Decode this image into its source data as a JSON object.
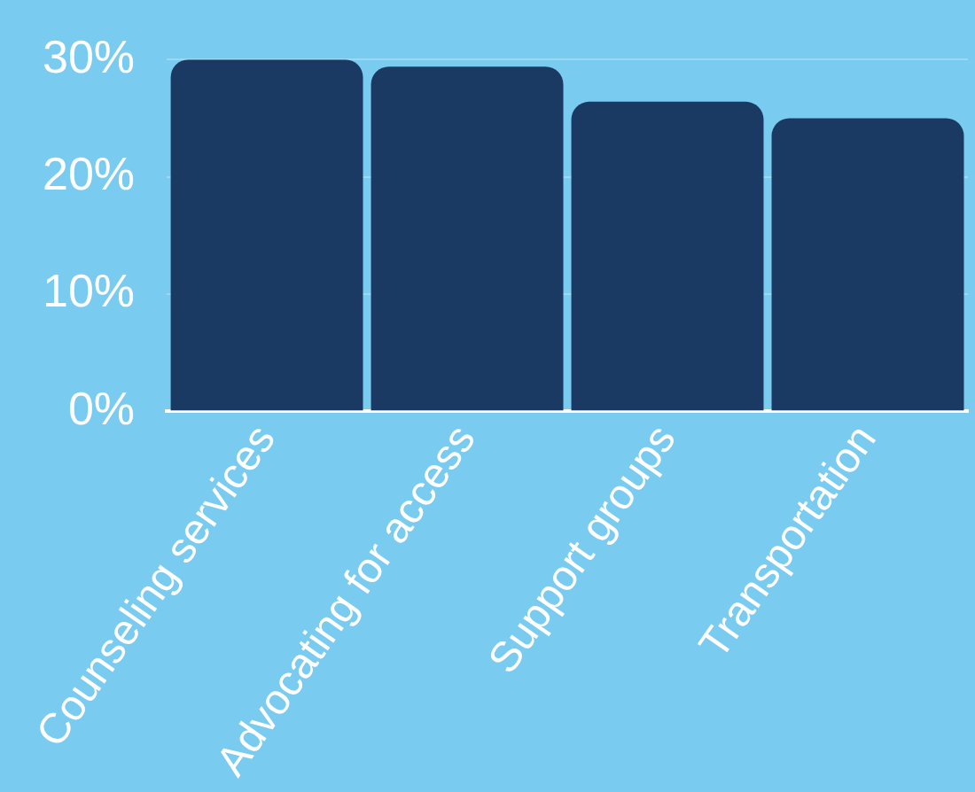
{
  "chart_data": {
    "type": "bar",
    "categories": [
      "Counseling services",
      "Advocating for access",
      "Support groups",
      "Transportation"
    ],
    "values": [
      30,
      29.4,
      26.4,
      25
    ],
    "color": "#1b3a63",
    "ylim": [
      0,
      30
    ],
    "yticks": [
      {
        "value": 0,
        "label": "0%"
      },
      {
        "value": 10,
        "label": "10%"
      },
      {
        "value": 20,
        "label": "20%"
      },
      {
        "value": 30,
        "label": "30%"
      }
    ],
    "grid": "y"
  }
}
